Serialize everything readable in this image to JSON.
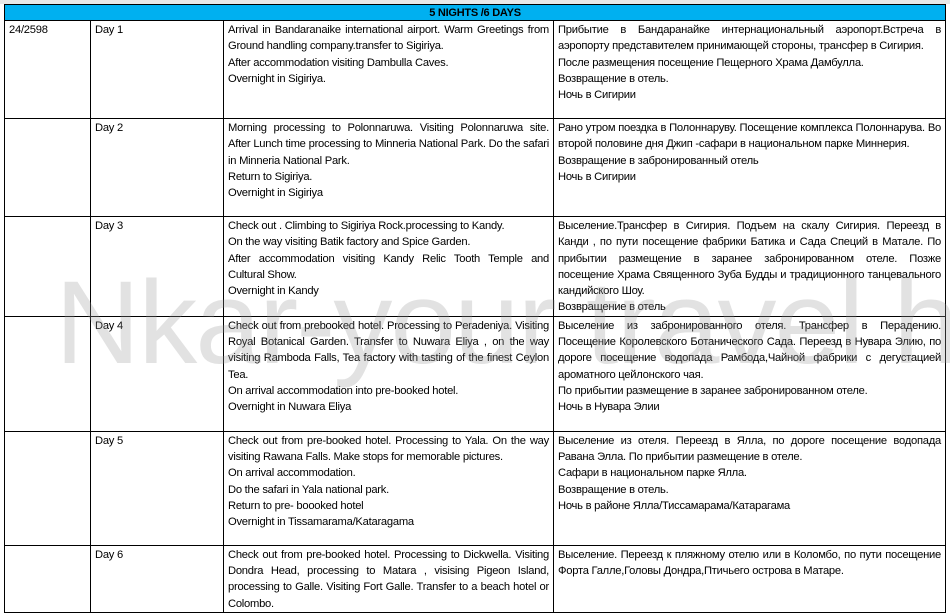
{
  "header": {
    "title": "5 NIGHTS /6 DAYS"
  },
  "watermark": "Nkar-your travel house",
  "rows": [
    {
      "code": "24/2598",
      "day": "Day 1",
      "en": [
        "Arrival in Bandaranaike international airport. Warm Greetings from Ground handling company.transfer to Sigiriya.",
        "After accommodation visiting Dambulla Caves.",
        "Overnight in Sigiriya."
      ],
      "ru": [
        "Прибытие в Бандаранайке интернациональный аэропорт.Встреча в аэропорту представителем принимающей стороны, трансфер в Сигирия.",
        "После размещения посещение    Пещерного Храма Дамбулла.",
        "Возвращение в отель.",
        "Ночь в Сигирии"
      ]
    },
    {
      "code": "",
      "day": "Day 2",
      "en": [
        "Morning processing to Polonnaruwa. Visiting Polonnaruwa site. After Lunch time processing to Minneria National Park. Do the safari in Minneria National Park.",
        "Return to Sigiriya.",
        "Overnight in Sigiriya"
      ],
      "ru": [
        "Рано утром поездка в Полоннаруву. Посещение    комплекса Полоннарува.    Во второй половине дня Джип -сафари в национальном парке Миннерия.",
        "  Возвращение в забронированный отель",
        "Ночь в Сигирии"
      ]
    },
    {
      "code": "",
      "day": "Day 3",
      "en": [
        "Check out . Climbing to Sigiriya Rock.processing to Kandy.",
        "On the way visiting Batik factory and Spice Garden.",
        "After accommodation visiting Kandy Relic Tooth Temple and Cultural Show.",
        "Overnight in Kandy"
      ],
      "ru": [
        "Выселение.Трансфер в Сигирия. Подъем на скалу Сигирия. Переезд в Канди , по пути посещение фабрики Батика и Сада Специй в Матале. По прибытии размещение в    заранее забронированном отеле. Позже    посещение Храма Священного Зуба Будды и традиционного танцевального кандийского Шоу.",
        "Возвращение в отель"
      ]
    },
    {
      "code": "",
      "day": "Day 4",
      "en": [
        "Check out from prebooked hotel. Processing to Peradeniya. Visiting Royal Botanical Garden. Transfer to Nuwara Eliya , on the way visiting Ramboda Falls, Tea factory with tasting of the finest Ceylon Tea.",
        "On arrival accommodation into pre-booked hotel.",
        "Overnight in Nuwara Eliya"
      ],
      "ru": [
        "Выселение из забронированного отеля. Трансфер в Перадению. Посещение Королевского Ботанического Сада. Переезд в Нувара Элию, по дороге посещение водопада Рамбода,Чайной фабрики с дегустацией ароматного цейлонского чая.",
        "  По прибытии размещение в заранее забронированном отеле.",
        "Ночь в Нувара Элии"
      ]
    },
    {
      "code": "",
      "day": "Day 5",
      "en": [
        "Check out from pre-booked hotel. Processing to Yala. On the way visiting Rawana Falls. Make stops for memorable pictures.",
        "On arrival accommodation.",
        "Do the safari in    Yala national park.",
        "Return to pre- boooked hotel",
        "Overnight in Tissamarama/Kataragama"
      ],
      "ru": [
        "Выселение из отеля. Переезд в Ялла, по дороге посещение водопада Равана Элла. По прибытии размещение в отеле.",
        "Сафари в национальном парке Ялла.",
        "Возвращение в отель.",
        "Ночь в районе Ялла/Тиссамарама/Катарагама"
      ]
    },
    {
      "code": "",
      "day": "Day 6",
      "en": [
        "Check out from pre-booked hotel. Processing to Dickwella. Visiting Dondra Head, processing to Matara , visising Pigeon Island, processing to Galle. Visiting Fort Galle. Transfer to a beach hotel or Colombo."
      ],
      "ru": [
        "Выселение. Переезд к пляжному отелю или в Коломбо, по пути посещение Форта Галле,Головы Дондра,Птичьего острова в Матаре."
      ]
    }
  ]
}
